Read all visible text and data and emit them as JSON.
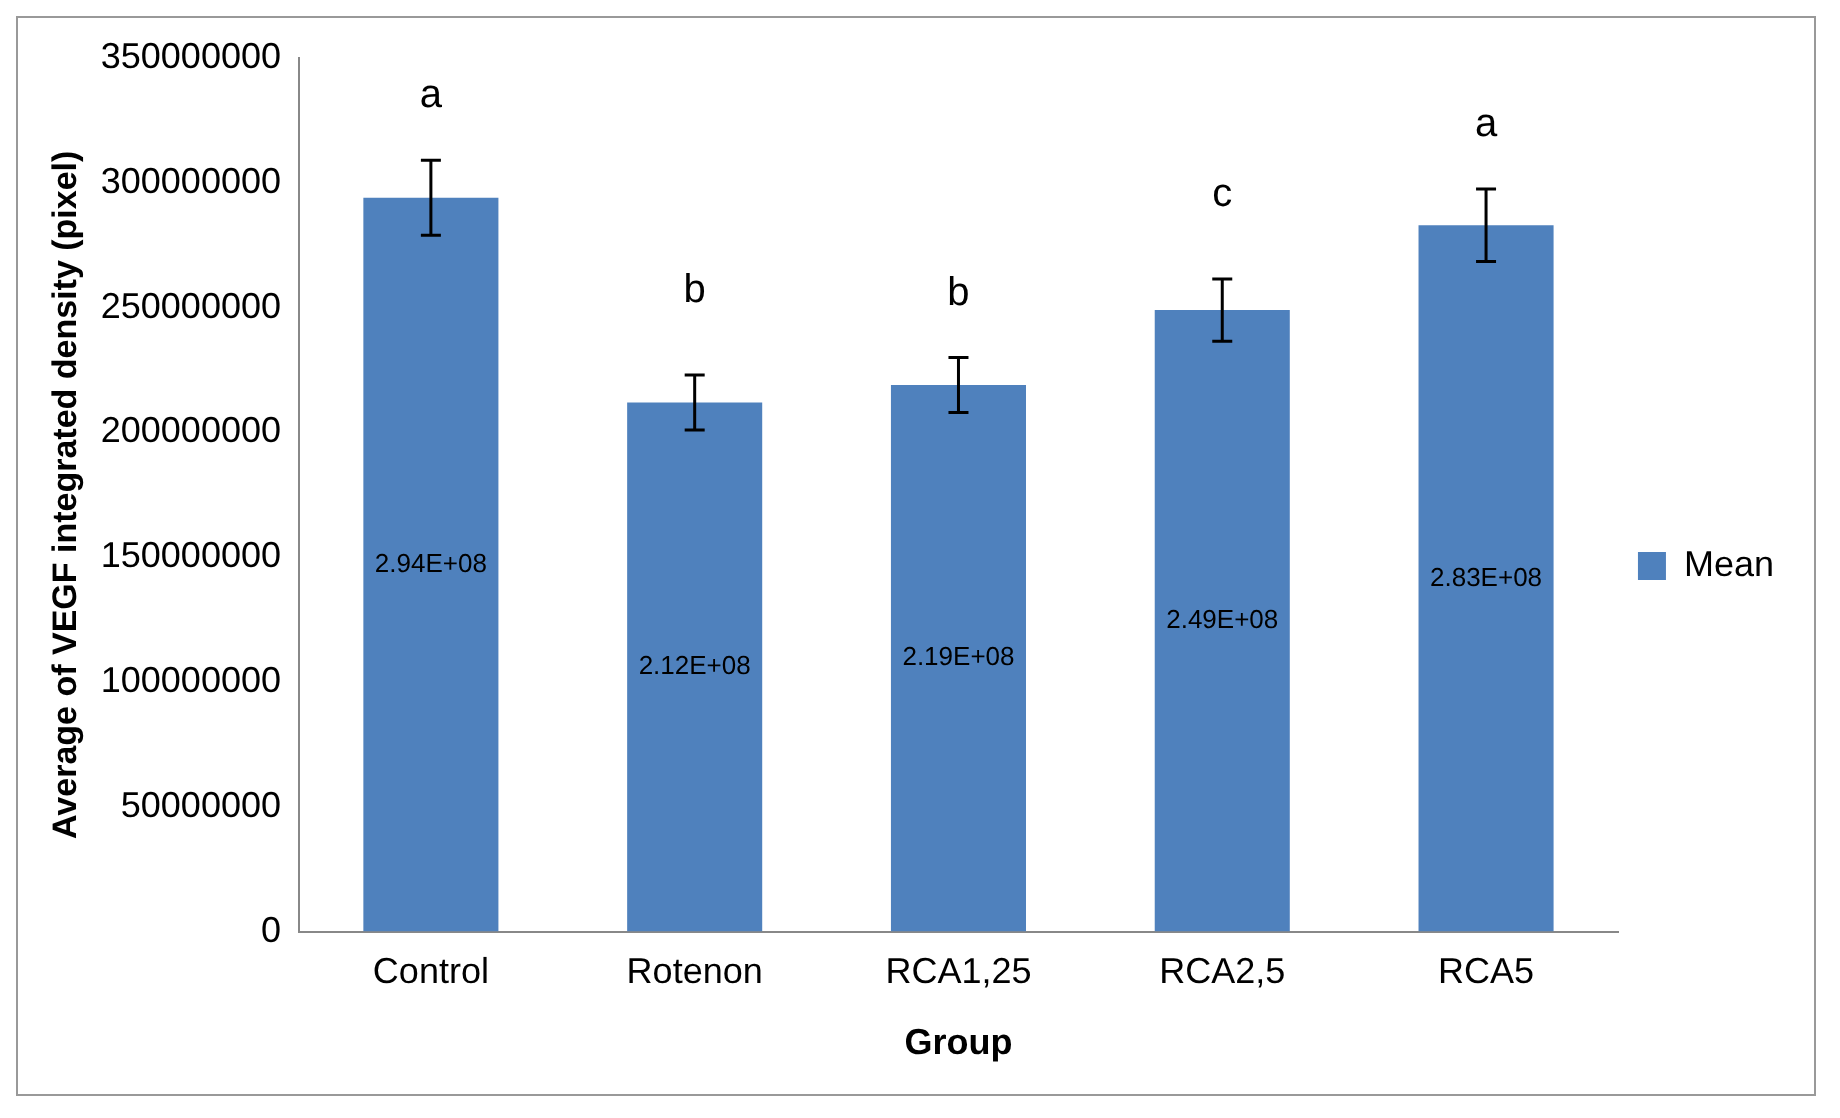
{
  "chart_data": {
    "type": "bar",
    "xlabel": "Group",
    "ylabel": "Average of VEGF integrated density (pixel)",
    "categories": [
      "Control",
      "Rotenon",
      "RCA1,25",
      "RCA2,5",
      "RCA5"
    ],
    "series": [
      {
        "name": "Mean",
        "color": "#4f81bd",
        "values": [
          294000000,
          212000000,
          219000000,
          249000000,
          283000000
        ],
        "errors": [
          15000000,
          11000000,
          11000000,
          12500000,
          14500000
        ],
        "value_labels": [
          "2.94E+08",
          "2.12E+08",
          "2.19E+08",
          "2.49E+08",
          "2.83E+08"
        ]
      }
    ],
    "ylim": [
      0,
      350000000
    ],
    "yticks": [
      0,
      50000000,
      100000000,
      150000000,
      200000000,
      250000000,
      300000000,
      350000000
    ],
    "grid": false,
    "legend": "right",
    "annotations": [
      "a",
      "b",
      "b",
      "c",
      "a"
    ]
  }
}
